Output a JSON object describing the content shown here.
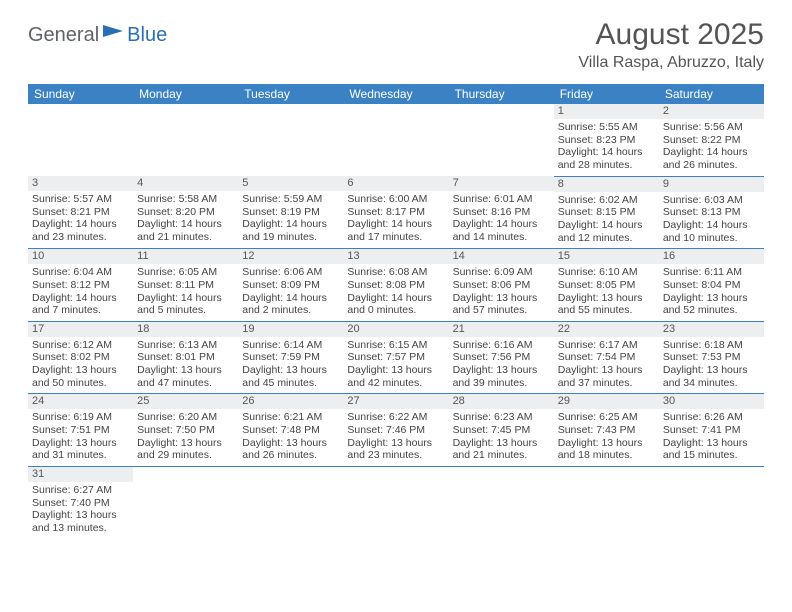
{
  "logo": {
    "part1": "General",
    "part2": "Blue"
  },
  "title": "August 2025",
  "subtitle": "Villa Raspa, Abruzzo, Italy",
  "colors": {
    "header_bg": "#3b82c4",
    "header_text": "#ffffff",
    "daynum_bg": "#eceef0",
    "row_border": "#3b82c4",
    "text": "#444444",
    "title": "#555555",
    "logo_dark": "#5f6368",
    "logo_blue": "#2a6fb5"
  },
  "weekdays": [
    "Sunday",
    "Monday",
    "Tuesday",
    "Wednesday",
    "Thursday",
    "Friday",
    "Saturday"
  ],
  "weeks": [
    [
      null,
      null,
      null,
      null,
      null,
      {
        "num": "1",
        "sunrise": "5:55 AM",
        "sunset": "8:23 PM",
        "daylight_l1": "Daylight: 14 hours",
        "daylight_l2": "and 28 minutes."
      },
      {
        "num": "2",
        "sunrise": "5:56 AM",
        "sunset": "8:22 PM",
        "daylight_l1": "Daylight: 14 hours",
        "daylight_l2": "and 26 minutes."
      }
    ],
    [
      {
        "num": "3",
        "sunrise": "5:57 AM",
        "sunset": "8:21 PM",
        "daylight_l1": "Daylight: 14 hours",
        "daylight_l2": "and 23 minutes."
      },
      {
        "num": "4",
        "sunrise": "5:58 AM",
        "sunset": "8:20 PM",
        "daylight_l1": "Daylight: 14 hours",
        "daylight_l2": "and 21 minutes."
      },
      {
        "num": "5",
        "sunrise": "5:59 AM",
        "sunset": "8:19 PM",
        "daylight_l1": "Daylight: 14 hours",
        "daylight_l2": "and 19 minutes."
      },
      {
        "num": "6",
        "sunrise": "6:00 AM",
        "sunset": "8:17 PM",
        "daylight_l1": "Daylight: 14 hours",
        "daylight_l2": "and 17 minutes."
      },
      {
        "num": "7",
        "sunrise": "6:01 AM",
        "sunset": "8:16 PM",
        "daylight_l1": "Daylight: 14 hours",
        "daylight_l2": "and 14 minutes."
      },
      {
        "num": "8",
        "sunrise": "6:02 AM",
        "sunset": "8:15 PM",
        "daylight_l1": "Daylight: 14 hours",
        "daylight_l2": "and 12 minutes."
      },
      {
        "num": "9",
        "sunrise": "6:03 AM",
        "sunset": "8:13 PM",
        "daylight_l1": "Daylight: 14 hours",
        "daylight_l2": "and 10 minutes."
      }
    ],
    [
      {
        "num": "10",
        "sunrise": "6:04 AM",
        "sunset": "8:12 PM",
        "daylight_l1": "Daylight: 14 hours",
        "daylight_l2": "and 7 minutes."
      },
      {
        "num": "11",
        "sunrise": "6:05 AM",
        "sunset": "8:11 PM",
        "daylight_l1": "Daylight: 14 hours",
        "daylight_l2": "and 5 minutes."
      },
      {
        "num": "12",
        "sunrise": "6:06 AM",
        "sunset": "8:09 PM",
        "daylight_l1": "Daylight: 14 hours",
        "daylight_l2": "and 2 minutes."
      },
      {
        "num": "13",
        "sunrise": "6:08 AM",
        "sunset": "8:08 PM",
        "daylight_l1": "Daylight: 14 hours",
        "daylight_l2": "and 0 minutes."
      },
      {
        "num": "14",
        "sunrise": "6:09 AM",
        "sunset": "8:06 PM",
        "daylight_l1": "Daylight: 13 hours",
        "daylight_l2": "and 57 minutes."
      },
      {
        "num": "15",
        "sunrise": "6:10 AM",
        "sunset": "8:05 PM",
        "daylight_l1": "Daylight: 13 hours",
        "daylight_l2": "and 55 minutes."
      },
      {
        "num": "16",
        "sunrise": "6:11 AM",
        "sunset": "8:04 PM",
        "daylight_l1": "Daylight: 13 hours",
        "daylight_l2": "and 52 minutes."
      }
    ],
    [
      {
        "num": "17",
        "sunrise": "6:12 AM",
        "sunset": "8:02 PM",
        "daylight_l1": "Daylight: 13 hours",
        "daylight_l2": "and 50 minutes."
      },
      {
        "num": "18",
        "sunrise": "6:13 AM",
        "sunset": "8:01 PM",
        "daylight_l1": "Daylight: 13 hours",
        "daylight_l2": "and 47 minutes."
      },
      {
        "num": "19",
        "sunrise": "6:14 AM",
        "sunset": "7:59 PM",
        "daylight_l1": "Daylight: 13 hours",
        "daylight_l2": "and 45 minutes."
      },
      {
        "num": "20",
        "sunrise": "6:15 AM",
        "sunset": "7:57 PM",
        "daylight_l1": "Daylight: 13 hours",
        "daylight_l2": "and 42 minutes."
      },
      {
        "num": "21",
        "sunrise": "6:16 AM",
        "sunset": "7:56 PM",
        "daylight_l1": "Daylight: 13 hours",
        "daylight_l2": "and 39 minutes."
      },
      {
        "num": "22",
        "sunrise": "6:17 AM",
        "sunset": "7:54 PM",
        "daylight_l1": "Daylight: 13 hours",
        "daylight_l2": "and 37 minutes."
      },
      {
        "num": "23",
        "sunrise": "6:18 AM",
        "sunset": "7:53 PM",
        "daylight_l1": "Daylight: 13 hours",
        "daylight_l2": "and 34 minutes."
      }
    ],
    [
      {
        "num": "24",
        "sunrise": "6:19 AM",
        "sunset": "7:51 PM",
        "daylight_l1": "Daylight: 13 hours",
        "daylight_l2": "and 31 minutes."
      },
      {
        "num": "25",
        "sunrise": "6:20 AM",
        "sunset": "7:50 PM",
        "daylight_l1": "Daylight: 13 hours",
        "daylight_l2": "and 29 minutes."
      },
      {
        "num": "26",
        "sunrise": "6:21 AM",
        "sunset": "7:48 PM",
        "daylight_l1": "Daylight: 13 hours",
        "daylight_l2": "and 26 minutes."
      },
      {
        "num": "27",
        "sunrise": "6:22 AM",
        "sunset": "7:46 PM",
        "daylight_l1": "Daylight: 13 hours",
        "daylight_l2": "and 23 minutes."
      },
      {
        "num": "28",
        "sunrise": "6:23 AM",
        "sunset": "7:45 PM",
        "daylight_l1": "Daylight: 13 hours",
        "daylight_l2": "and 21 minutes."
      },
      {
        "num": "29",
        "sunrise": "6:25 AM",
        "sunset": "7:43 PM",
        "daylight_l1": "Daylight: 13 hours",
        "daylight_l2": "and 18 minutes."
      },
      {
        "num": "30",
        "sunrise": "6:26 AM",
        "sunset": "7:41 PM",
        "daylight_l1": "Daylight: 13 hours",
        "daylight_l2": "and 15 minutes."
      }
    ],
    [
      {
        "num": "31",
        "sunrise": "6:27 AM",
        "sunset": "7:40 PM",
        "daylight_l1": "Daylight: 13 hours",
        "daylight_l2": "and 13 minutes."
      },
      null,
      null,
      null,
      null,
      null,
      null
    ]
  ]
}
